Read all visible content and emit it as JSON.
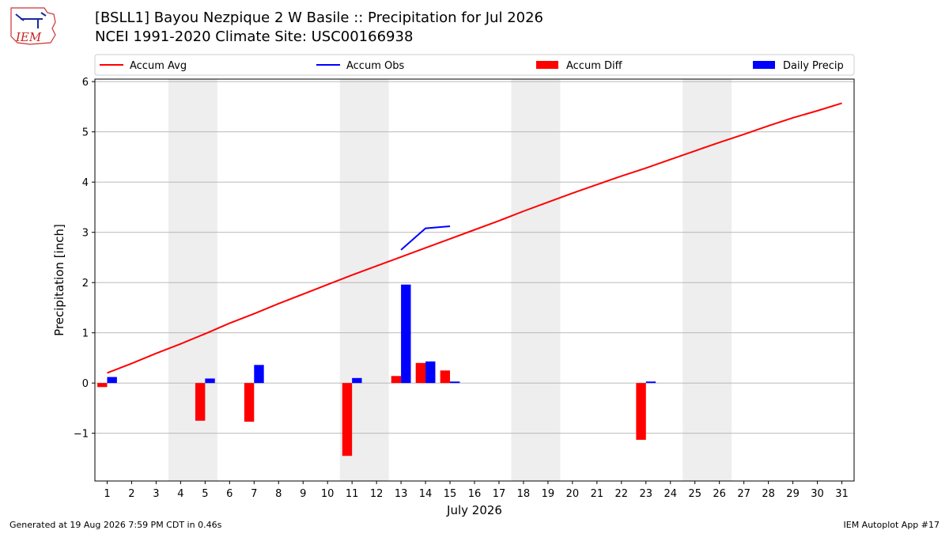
{
  "header": {
    "logo_text": "IEM",
    "title": "[BSLL1] Bayou Nezpique 2 W Basile :: Precipitation for Jul 2026",
    "subtitle": "NCEI 1991-2020 Climate Site: USC00166938"
  },
  "footer": {
    "generated": "Generated at 19 Aug 2026 7:59 PM CDT in 0.46s",
    "app": "IEM Autoplot App #17"
  },
  "colors": {
    "accum_avg": "#ff0000",
    "accum_obs": "#0000ff",
    "accum_diff": "#ff0000",
    "daily_precip": "#0000ff",
    "weekend_shade": "#eeeeee",
    "grid": "#b0b0b0"
  },
  "chart_data": {
    "type": "bar",
    "xlabel": "July 2026",
    "ylabel": "Precipitation [inch]",
    "xlim": [
      0.5,
      31.5
    ],
    "ylim": [
      -1.95,
      6.05
    ],
    "yticks": [
      -1,
      0,
      1,
      2,
      3,
      4,
      5,
      6
    ],
    "ytick_labels": [
      "−1",
      "0",
      "1",
      "2",
      "3",
      "4",
      "5",
      "6"
    ],
    "x": [
      1,
      2,
      3,
      4,
      5,
      6,
      7,
      8,
      9,
      10,
      11,
      12,
      13,
      14,
      15,
      16,
      17,
      18,
      19,
      20,
      21,
      22,
      23,
      24,
      25,
      26,
      27,
      28,
      29,
      30,
      31
    ],
    "grid": "horizontal",
    "legend_position": "top",
    "legend": [
      "Accum Avg",
      "Accum Obs",
      "Accum Diff",
      "Daily Precip"
    ],
    "shaded_weekends": [
      [
        4,
        5
      ],
      [
        11,
        12
      ],
      [
        18,
        19
      ],
      [
        25,
        26
      ]
    ],
    "series": [
      {
        "name": "Accum Avg",
        "type": "line",
        "x": [
          1,
          2,
          3,
          4,
          5,
          6,
          7,
          8,
          9,
          10,
          11,
          12,
          13,
          14,
          15,
          16,
          17,
          18,
          19,
          20,
          21,
          22,
          23,
          24,
          25,
          26,
          27,
          28,
          29,
          30,
          31
        ],
        "values": [
          0.2,
          0.39,
          0.59,
          0.78,
          0.98,
          1.19,
          1.38,
          1.58,
          1.77,
          1.96,
          2.15,
          2.33,
          2.51,
          2.69,
          2.87,
          3.05,
          3.23,
          3.42,
          3.6,
          3.78,
          3.95,
          4.12,
          4.28,
          4.45,
          4.62,
          4.79,
          4.95,
          5.12,
          5.28,
          5.42,
          5.57
        ]
      },
      {
        "name": "Accum Obs",
        "type": "line",
        "x": [
          13,
          14,
          15
        ],
        "values": [
          2.65,
          3.08,
          3.12
        ]
      },
      {
        "name": "Accum Diff",
        "type": "bar",
        "x": [
          1,
          5,
          7,
          11,
          13,
          14,
          15,
          23
        ],
        "values": [
          -0.08,
          -0.75,
          -0.77,
          -1.45,
          0.14,
          0.4,
          0.25,
          -1.13
        ]
      },
      {
        "name": "Daily Precip",
        "type": "bar",
        "x": [
          1,
          5,
          7,
          11,
          13,
          14,
          15,
          23
        ],
        "values": [
          0.12,
          0.09,
          0.36,
          0.1,
          1.96,
          0.43,
          0.03,
          0.03
        ]
      }
    ]
  }
}
